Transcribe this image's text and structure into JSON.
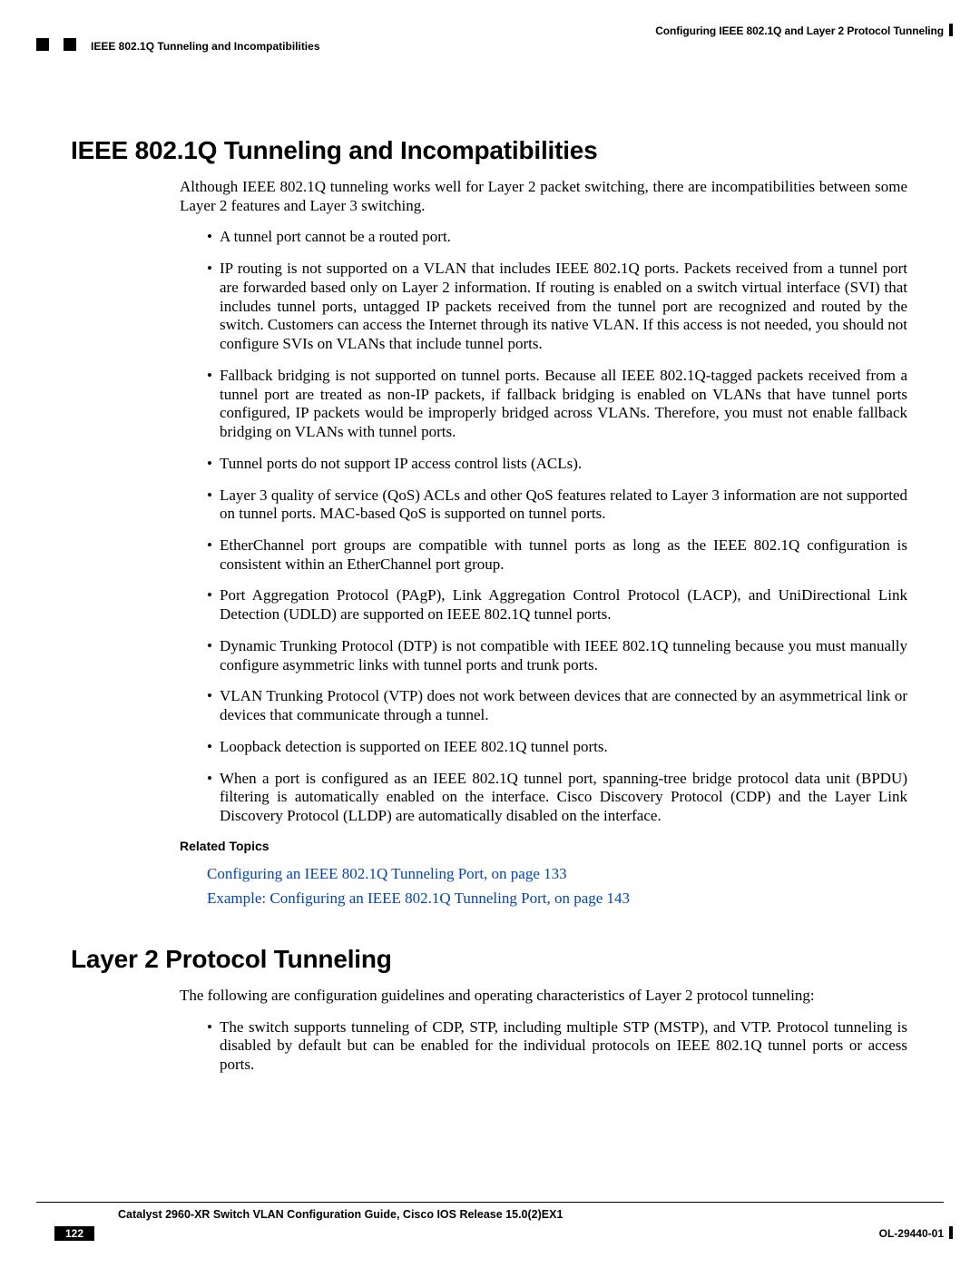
{
  "header": {
    "chapter_right": "Configuring IEEE 802.1Q and Layer 2 Protocol Tunneling",
    "section_left": "IEEE 802.1Q Tunneling and Incompatibilities"
  },
  "section1": {
    "title": "IEEE 802.1Q Tunneling and Incompatibilities",
    "intro": "Although IEEE 802.1Q tunneling works well for Layer 2 packet switching, there are incompatibilities between some Layer 2 features and Layer 3 switching.",
    "bullets": [
      "A tunnel port cannot be a routed port.",
      "IP routing is not supported on a VLAN that includes IEEE 802.1Q ports. Packets received from a tunnel port are forwarded based only on Layer 2 information. If routing is enabled on a switch virtual interface (SVI) that includes tunnel ports, untagged IP packets received from the tunnel port are recognized and routed by the switch. Customers can access the Internet through its native VLAN. If this access is not needed, you should not configure SVIs on VLANs that include tunnel ports.",
      "Fallback bridging is not supported on tunnel ports. Because all IEEE 802.1Q-tagged packets received from a tunnel port are treated as non-IP packets, if fallback bridging is enabled on VLANs that have tunnel ports configured, IP packets would be improperly bridged across VLANs. Therefore, you must not enable fallback bridging on VLANs with tunnel ports.",
      "Tunnel ports do not support IP access control lists (ACLs).",
      "Layer 3 quality of service (QoS) ACLs and other QoS features related to Layer 3 information are not supported on tunnel ports. MAC-based QoS is supported on tunnel ports.",
      "EtherChannel port groups are compatible with tunnel ports as long as the IEEE 802.1Q configuration is consistent within an EtherChannel port group.",
      "Port Aggregation Protocol (PAgP), Link Aggregation Control Protocol (LACP), and UniDirectional Link Detection (UDLD) are supported on IEEE 802.1Q tunnel ports.",
      "Dynamic Trunking Protocol (DTP) is not compatible with IEEE 802.1Q tunneling because you must manually configure asymmetric links with tunnel ports and trunk ports.",
      "VLAN Trunking Protocol (VTP) does not work between devices that are connected by an asymmetrical link or devices that communicate through a tunnel.",
      "Loopback detection is supported on IEEE 802.1Q tunnel ports.",
      "When a port is configured as an IEEE 802.1Q tunnel port, spanning-tree bridge protocol data unit (BPDU) filtering is automatically enabled on the interface. Cisco Discovery Protocol (CDP) and the Layer Link Discovery Protocol (LLDP) are automatically disabled on the interface."
    ],
    "related_title": "Related Topics",
    "links": [
      "Configuring an IEEE 802.1Q Tunneling Port,  on page 133",
      "Example: Configuring an IEEE 802.1Q Tunneling Port,  on page 143"
    ]
  },
  "section2": {
    "title": "Layer 2 Protocol Tunneling",
    "intro": "The following are configuration guidelines and operating characteristics of Layer 2 protocol tunneling:",
    "bullets": [
      "The switch supports tunneling of CDP, STP, including multiple STP (MSTP), and VTP. Protocol tunneling is disabled by default but can be enabled for the individual protocols on IEEE 802.1Q tunnel ports or access ports."
    ]
  },
  "footer": {
    "guide": "Catalyst 2960-XR Switch VLAN Configuration Guide, Cisco IOS Release 15.0(2)EX1",
    "page": "122",
    "docid": "OL-29440-01"
  },
  "colors": {
    "text": "#000000",
    "link": "#0043c4",
    "bg": "#ffffff"
  }
}
